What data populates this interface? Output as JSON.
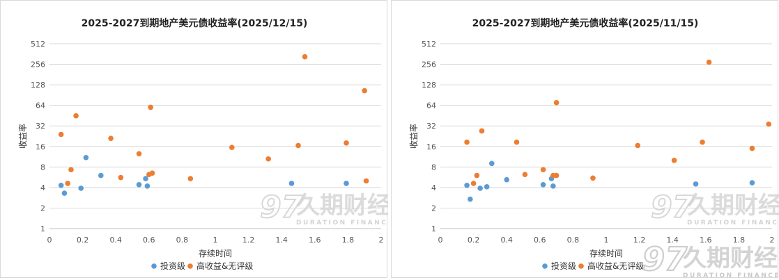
{
  "chart_data": [
    {
      "type": "scatter",
      "title": "2025-2027到期地产美元债收益率(2025/12/15)",
      "xlabel": "存续时间",
      "ylabel": "收益率",
      "xlim": [
        0,
        2
      ],
      "xticks": [
        0,
        0.2,
        0.4,
        0.6,
        0.8,
        1,
        1.2,
        1.4,
        1.6,
        1.8,
        2
      ],
      "xtick_labels": [
        "0",
        "0.2",
        "0.4",
        "0.6",
        "0.8",
        "1",
        "1.2",
        "1.4",
        "1.6",
        "1.8",
        "2"
      ],
      "ylim": [
        1,
        512
      ],
      "yscale": "log2",
      "yticks": [
        1,
        2,
        4,
        8,
        16,
        32,
        64,
        128,
        256,
        512
      ],
      "ytick_labels": [
        "1",
        "2",
        "4",
        "8",
        "16",
        "32",
        "64",
        "128",
        "256",
        "512"
      ],
      "grid": true,
      "legend_position": "bottom",
      "series": [
        {
          "name": "投资级",
          "color": "#5b9bd5",
          "points": [
            {
              "x": 0.07,
              "y": 4.3
            },
            {
              "x": 0.09,
              "y": 3.3
            },
            {
              "x": 0.19,
              "y": 3.9
            },
            {
              "x": 0.22,
              "y": 11
            },
            {
              "x": 0.31,
              "y": 6
            },
            {
              "x": 0.54,
              "y": 4.4
            },
            {
              "x": 0.58,
              "y": 5.4
            },
            {
              "x": 0.59,
              "y": 4.2
            },
            {
              "x": 1.46,
              "y": 4.6
            },
            {
              "x": 1.79,
              "y": 4.6
            }
          ]
        },
        {
          "name": "高收益&无评级",
          "color": "#ed7d31",
          "points": [
            {
              "x": 0.07,
              "y": 24
            },
            {
              "x": 0.11,
              "y": 4.6
            },
            {
              "x": 0.13,
              "y": 7.3
            },
            {
              "x": 0.16,
              "y": 45
            },
            {
              "x": 0.37,
              "y": 21
            },
            {
              "x": 0.43,
              "y": 5.6
            },
            {
              "x": 0.54,
              "y": 12.5
            },
            {
              "x": 0.6,
              "y": 6.2
            },
            {
              "x": 0.62,
              "y": 6.5
            },
            {
              "x": 0.61,
              "y": 60
            },
            {
              "x": 0.85,
              "y": 5.4
            },
            {
              "x": 1.1,
              "y": 15.5
            },
            {
              "x": 1.32,
              "y": 10.5
            },
            {
              "x": 1.5,
              "y": 16.5
            },
            {
              "x": 1.54,
              "y": 330
            },
            {
              "x": 1.79,
              "y": 18
            },
            {
              "x": 1.9,
              "y": 105
            },
            {
              "x": 1.91,
              "y": 5
            }
          ]
        }
      ],
      "watermark": {
        "cn": "久期财经",
        "en": "DURATION FINANCE",
        "logo": "97"
      }
    },
    {
      "type": "scatter",
      "title": "2025-2027到期地产美元债收益率(2025/11/15)",
      "xlabel": "存续时间",
      "ylabel": "收益率",
      "xlim": [
        0,
        2
      ],
      "xticks": [
        0,
        0.2,
        0.4,
        0.6,
        0.8,
        1,
        1.2,
        1.4,
        1.6,
        1.8,
        2
      ],
      "xtick_labels": [
        "0",
        "0.2",
        "0.4",
        "0.6",
        "0.8",
        "1",
        "1.2",
        "1.4",
        "1.6",
        "1.8",
        "2"
      ],
      "ylim": [
        1,
        512
      ],
      "yscale": "log2",
      "yticks": [
        1,
        2,
        4,
        8,
        16,
        32,
        64,
        128,
        256,
        512
      ],
      "ytick_labels": [
        "1",
        "2",
        "4",
        "8",
        "16",
        "32",
        "64",
        "128",
        "256",
        "512"
      ],
      "grid": true,
      "legend_position": "bottom",
      "series": [
        {
          "name": "投资级",
          "color": "#5b9bd5",
          "points": [
            {
              "x": 0.16,
              "y": 4.3
            },
            {
              "x": 0.18,
              "y": 2.7
            },
            {
              "x": 0.24,
              "y": 3.9
            },
            {
              "x": 0.28,
              "y": 4.1
            },
            {
              "x": 0.31,
              "y": 9
            },
            {
              "x": 0.4,
              "y": 5.2
            },
            {
              "x": 0.62,
              "y": 4.4
            },
            {
              "x": 0.67,
              "y": 5.4
            },
            {
              "x": 0.68,
              "y": 4.2
            },
            {
              "x": 1.54,
              "y": 4.5
            },
            {
              "x": 1.88,
              "y": 4.7
            }
          ]
        },
        {
          "name": "高收益&无评级",
          "color": "#ed7d31",
          "points": [
            {
              "x": 0.16,
              "y": 18.5
            },
            {
              "x": 0.2,
              "y": 4.6
            },
            {
              "x": 0.22,
              "y": 6
            },
            {
              "x": 0.25,
              "y": 27
            },
            {
              "x": 0.46,
              "y": 18.5
            },
            {
              "x": 0.51,
              "y": 6.2
            },
            {
              "x": 0.62,
              "y": 7.3
            },
            {
              "x": 0.68,
              "y": 6
            },
            {
              "x": 0.7,
              "y": 6
            },
            {
              "x": 0.7,
              "y": 70
            },
            {
              "x": 0.92,
              "y": 5.5
            },
            {
              "x": 1.19,
              "y": 16.5
            },
            {
              "x": 1.41,
              "y": 10
            },
            {
              "x": 1.58,
              "y": 18.5
            },
            {
              "x": 1.62,
              "y": 275
            },
            {
              "x": 1.88,
              "y": 15
            },
            {
              "x": 1.98,
              "y": 34
            }
          ]
        }
      ],
      "watermark": {
        "cn": "久期财经",
        "en": "DURATION FINANCE",
        "logo": "97"
      }
    }
  ],
  "corner_watermark": {
    "cn": "久期财经",
    "en": "DURATION FINANCE",
    "logo": "97"
  }
}
